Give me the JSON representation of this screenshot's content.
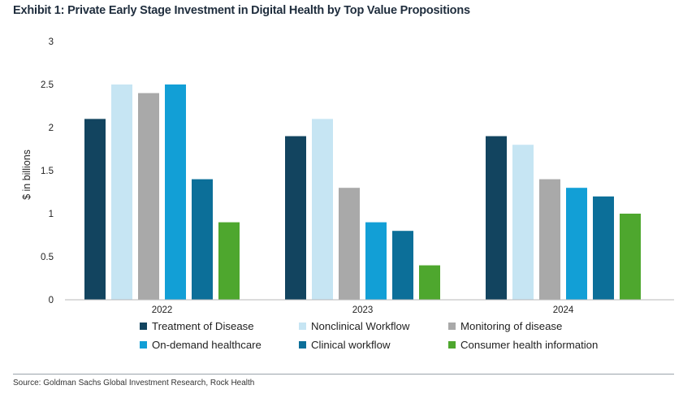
{
  "title": "Exhibit 1: Private Early Stage Investment in Digital Health by Top Value Propositions",
  "source": "Source: Goldman Sachs Global Investment Research, Rock Health",
  "chart_data": {
    "type": "bar",
    "title": "Exhibit 1: Private Early Stage Investment in Digital Health by Top Value Propositions",
    "xlabel": "",
    "ylabel": "$ in billions",
    "ylim": [
      0,
      3
    ],
    "yticks": [
      "0",
      "0.5",
      "1",
      "1.5",
      "2",
      "2.5",
      "3"
    ],
    "grid": false,
    "legend_position": "bottom",
    "categories": [
      "2022",
      "2023",
      "2024"
    ],
    "series": [
      {
        "name": "Treatment of Disease",
        "color": "#12445f",
        "values": [
          2.1,
          1.9,
          1.9
        ]
      },
      {
        "name": "Nonclinical Workflow",
        "color": "#c6e5f3",
        "values": [
          2.5,
          2.1,
          1.8
        ]
      },
      {
        "name": "Monitoring of disease",
        "color": "#a9a9a9",
        "values": [
          2.4,
          1.3,
          1.4
        ]
      },
      {
        "name": "On-demand healthcare",
        "color": "#129fd6",
        "values": [
          2.5,
          0.9,
          1.3
        ]
      },
      {
        "name": "Clinical workflow",
        "color": "#0c6f99",
        "values": [
          1.4,
          0.8,
          1.2
        ]
      },
      {
        "name": "Consumer health information",
        "color": "#4ea72e",
        "values": [
          0.9,
          0.4,
          1.0
        ]
      }
    ]
  }
}
